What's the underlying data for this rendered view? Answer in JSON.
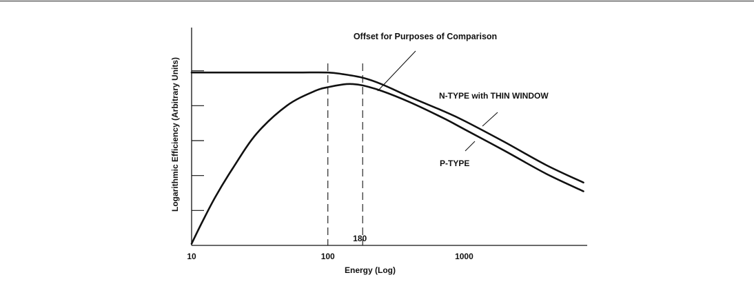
{
  "chart_data": {
    "type": "line",
    "title": "Offset for Purposes of Comparison",
    "xlabel": "Energy (Log)",
    "ylabel": "Logarithmic Efficiency (Arbitrary Units)",
    "x_scale": "log",
    "xlim": [
      10,
      8000
    ],
    "ylim": [
      0,
      6
    ],
    "x_tick_labels": [
      {
        "value": 10,
        "label": "10"
      },
      {
        "value": 100,
        "label": "100"
      },
      {
        "value": 1000,
        "label": "1000"
      }
    ],
    "y_tick_values": [
      1,
      2,
      3,
      4,
      5
    ],
    "y_tick_labels_shown": false,
    "reference_lines": [
      {
        "x": 100,
        "style": "dashed",
        "label": ""
      },
      {
        "x": 180,
        "style": "dashed",
        "label": "180"
      }
    ],
    "series": [
      {
        "name": "N-TYPE with THIN WINDOW",
        "x": [
          10,
          30,
          60,
          100,
          130,
          180,
          250,
          400,
          700,
          1000,
          2000,
          4000,
          7500
        ],
        "y": [
          4.95,
          4.95,
          4.95,
          4.95,
          4.9,
          4.8,
          4.61,
          4.25,
          3.85,
          3.57,
          2.95,
          2.3,
          1.8
        ]
      },
      {
        "name": "P-TYPE",
        "x": [
          10,
          12,
          15,
          20,
          30,
          50,
          80,
          100,
          130,
          150,
          180,
          250,
          400,
          700,
          1000,
          2000,
          4000,
          7500
        ],
        "y": [
          0.05,
          0.68,
          1.4,
          2.2,
          3.2,
          4.0,
          4.42,
          4.53,
          4.61,
          4.62,
          4.58,
          4.42,
          4.1,
          3.65,
          3.33,
          2.7,
          2.05,
          1.55
        ]
      }
    ],
    "annotations": [
      {
        "text": "N-TYPE with THIN WINDOW",
        "points_to": "N-TYPE with THIN WINDOW"
      },
      {
        "text": "P-TYPE",
        "points_to": "P-TYPE"
      }
    ]
  }
}
